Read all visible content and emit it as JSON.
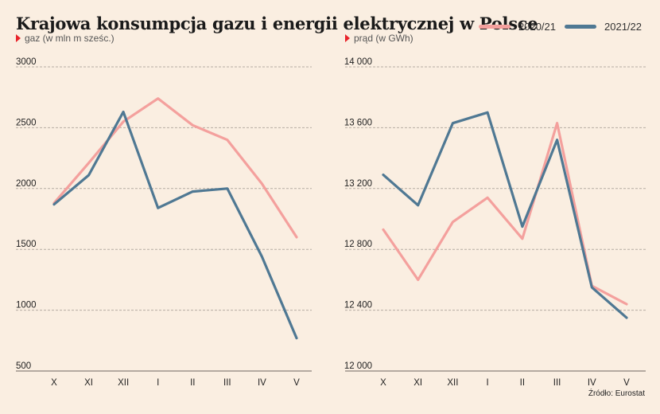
{
  "title": "Krajowa konsumpcja gazu i energii elektrycznej w Polsce",
  "source": "Źródło: Eurostat",
  "colors": {
    "series_2020_21": "#f4a09d",
    "series_2021_22": "#4f7893",
    "grid": "#b5aca3",
    "arrow": "#e8232a"
  },
  "legend": [
    {
      "label": "2020/21",
      "color": "#f4a09d"
    },
    {
      "label": "2021/22",
      "color": "#4f7893"
    }
  ],
  "chart_data": [
    {
      "type": "line",
      "unit_label": "gaz (w mln m sześc.)",
      "categories": [
        "X",
        "XI",
        "XII",
        "I",
        "II",
        "III",
        "IV",
        "V"
      ],
      "ylim": [
        500,
        3000
      ],
      "yticks": [
        "500",
        "1000",
        "1500",
        "2000",
        "2500",
        "3000"
      ],
      "grid": true,
      "series": [
        {
          "name": "2020/21",
          "values": [
            1880,
            2210,
            2550,
            2740,
            2520,
            2400,
            2040,
            1600
          ]
        },
        {
          "name": "2021/22",
          "values": [
            1870,
            2110,
            2630,
            1840,
            1975,
            2000,
            1440,
            770
          ]
        }
      ]
    },
    {
      "type": "line",
      "unit_label": "prąd (w GWh)",
      "categories": [
        "X",
        "XI",
        "XII",
        "I",
        "II",
        "III",
        "IV",
        "V"
      ],
      "ylim": [
        12000,
        14000
      ],
      "yticks": [
        "12 000",
        "12 400",
        "12 800",
        "13 200",
        "13 600",
        "14 000"
      ],
      "grid": true,
      "series": [
        {
          "name": "2020/21",
          "values": [
            12930,
            12600,
            12980,
            13140,
            12870,
            13630,
            12560,
            12440
          ]
        },
        {
          "name": "2021/22",
          "values": [
            13290,
            13090,
            13630,
            13700,
            12950,
            13520,
            12550,
            12350
          ]
        }
      ]
    }
  ]
}
